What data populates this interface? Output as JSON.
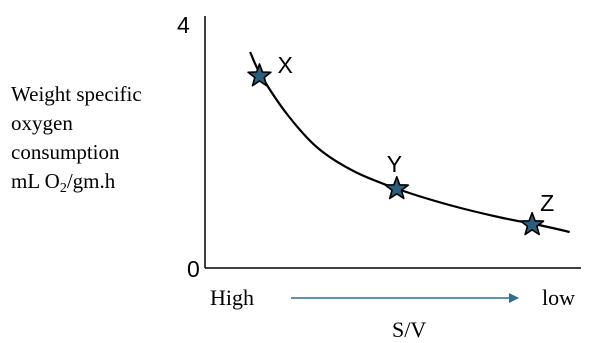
{
  "chart_data": {
    "type": "line",
    "ylabel": {
      "line1": "Weight specific",
      "line2": "oxygen",
      "line3": "consumption",
      "line4_pre": "mL O",
      "line4_sub": "2",
      "line4_post": "/gm.h"
    },
    "xlabel": "S/V",
    "x_start_label": "High",
    "x_end_label": "low",
    "yticks": [
      "4",
      "0"
    ],
    "ylim": [
      0,
      4
    ],
    "xlim": [
      0,
      1
    ],
    "curve": [
      {
        "x": 0.12,
        "y": 3.6
      },
      {
        "x": 0.15,
        "y": 3.2
      },
      {
        "x": 0.22,
        "y": 2.55
      },
      {
        "x": 0.3,
        "y": 2.0
      },
      {
        "x": 0.4,
        "y": 1.6
      },
      {
        "x": 0.52,
        "y": 1.3
      },
      {
        "x": 0.65,
        "y": 1.05
      },
      {
        "x": 0.78,
        "y": 0.85
      },
      {
        "x": 0.9,
        "y": 0.7
      },
      {
        "x": 0.97,
        "y": 0.6
      }
    ],
    "points": [
      {
        "label": "X",
        "x": 0.145,
        "y": 3.2
      },
      {
        "label": "Y",
        "x": 0.51,
        "y": 1.32
      },
      {
        "label": "Z",
        "x": 0.87,
        "y": 0.72
      }
    ],
    "arrow_color": "#2e6e8e",
    "star_color": "#2b5d7d",
    "grid": false,
    "legend": "none"
  }
}
